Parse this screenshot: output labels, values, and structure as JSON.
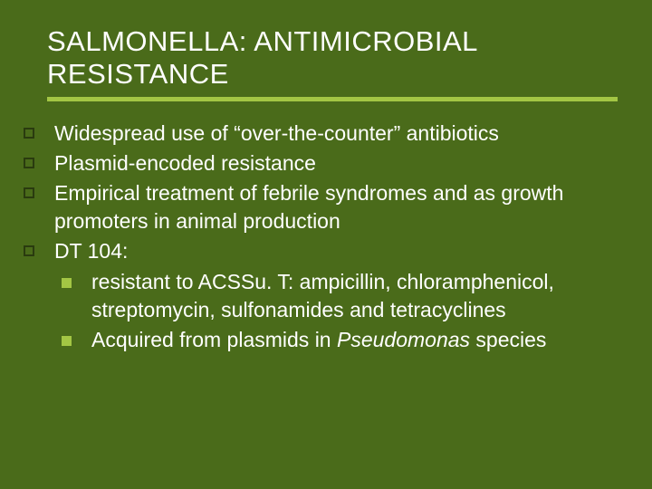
{
  "slide": {
    "background_color": "#4a6b1a",
    "accent_color": "#a3c644",
    "outer_bullet_border": "#2a3b0f",
    "text_color": "#ffffff",
    "title_fontsize": 31,
    "body_fontsize": 23,
    "font_family": "Verdana",
    "title": "SALMONELLA: ANTIMICROBIAL RESISTANCE",
    "bullets": [
      {
        "text": "Widespread use of “over-the-counter” antibiotics"
      },
      {
        "text": "Plasmid-encoded resistance"
      },
      {
        "text": "Empirical treatment of febrile syndromes and as growth promoters in animal production"
      },
      {
        "text": "DT 104:"
      }
    ],
    "sub_bullets": [
      {
        "text": "resistant to ACSSu. T: ampicillin, chloramphenicol, streptomycin, sulfonamides and tetracyclines"
      },
      {
        "text_prefix": "Acquired from plasmids in ",
        "text_italic": "Pseudomonas",
        "text_suffix": " species"
      }
    ]
  }
}
